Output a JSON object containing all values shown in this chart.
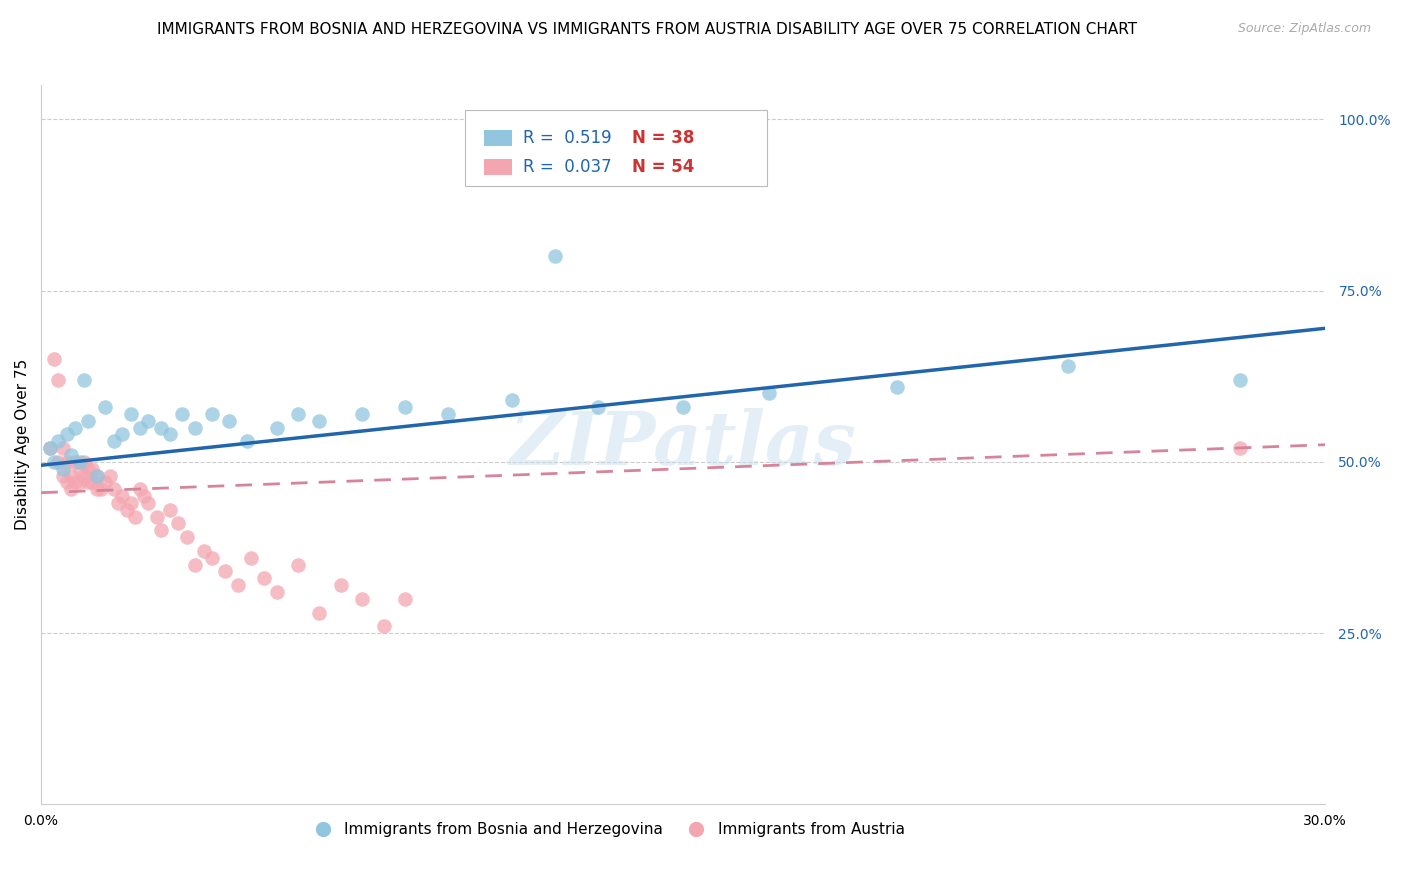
{
  "title": "IMMIGRANTS FROM BOSNIA AND HERZEGOVINA VS IMMIGRANTS FROM AUSTRIA DISABILITY AGE OVER 75 CORRELATION CHART",
  "source": "Source: ZipAtlas.com",
  "ylabel": "Disability Age Over 75",
  "xlim": [
    0.0,
    0.3
  ],
  "ylim": [
    0.0,
    1.05
  ],
  "xtick_labels": [
    "0.0%",
    "",
    "",
    "",
    "",
    "",
    "30.0%"
  ],
  "xtick_vals": [
    0.0,
    0.05,
    0.1,
    0.15,
    0.2,
    0.25,
    0.3
  ],
  "ytick_labels_right": [
    "100.0%",
    "75.0%",
    "50.0%",
    "25.0%"
  ],
  "ytick_vals_right": [
    1.0,
    0.75,
    0.5,
    0.25
  ],
  "R_bosnia": 0.519,
  "N_bosnia": 38,
  "R_austria": 0.037,
  "N_austria": 54,
  "color_bosnia": "#92c5de",
  "color_austria": "#f4a6b0",
  "color_line_bosnia": "#2166ac",
  "color_line_austria": "#d6849a",
  "watermark": "ZIPatlas",
  "bosnia_x": [
    0.002,
    0.003,
    0.004,
    0.005,
    0.006,
    0.007,
    0.008,
    0.009,
    0.01,
    0.011,
    0.013,
    0.015,
    0.017,
    0.019,
    0.021,
    0.023,
    0.025,
    0.028,
    0.03,
    0.033,
    0.036,
    0.04,
    0.044,
    0.048,
    0.055,
    0.06,
    0.065,
    0.075,
    0.085,
    0.095,
    0.11,
    0.12,
    0.13,
    0.15,
    0.17,
    0.2,
    0.24,
    0.28
  ],
  "bosnia_y": [
    0.52,
    0.5,
    0.53,
    0.49,
    0.54,
    0.51,
    0.55,
    0.5,
    0.62,
    0.56,
    0.48,
    0.58,
    0.53,
    0.54,
    0.57,
    0.55,
    0.56,
    0.55,
    0.54,
    0.57,
    0.55,
    0.57,
    0.56,
    0.53,
    0.55,
    0.57,
    0.56,
    0.57,
    0.58,
    0.57,
    0.59,
    0.8,
    0.58,
    0.58,
    0.6,
    0.61,
    0.64,
    0.62
  ],
  "austria_x": [
    0.002,
    0.003,
    0.004,
    0.004,
    0.005,
    0.005,
    0.006,
    0.006,
    0.007,
    0.007,
    0.008,
    0.008,
    0.009,
    0.009,
    0.01,
    0.01,
    0.011,
    0.011,
    0.012,
    0.012,
    0.013,
    0.013,
    0.014,
    0.015,
    0.016,
    0.017,
    0.018,
    0.019,
    0.02,
    0.021,
    0.022,
    0.023,
    0.024,
    0.025,
    0.027,
    0.028,
    0.03,
    0.032,
    0.034,
    0.036,
    0.038,
    0.04,
    0.043,
    0.046,
    0.049,
    0.052,
    0.055,
    0.06,
    0.065,
    0.07,
    0.075,
    0.08,
    0.085,
    0.28
  ],
  "austria_y": [
    0.52,
    0.65,
    0.5,
    0.62,
    0.48,
    0.52,
    0.47,
    0.5,
    0.48,
    0.46,
    0.5,
    0.47,
    0.49,
    0.47,
    0.5,
    0.48,
    0.49,
    0.47,
    0.49,
    0.47,
    0.46,
    0.48,
    0.46,
    0.47,
    0.48,
    0.46,
    0.44,
    0.45,
    0.43,
    0.44,
    0.42,
    0.46,
    0.45,
    0.44,
    0.42,
    0.4,
    0.43,
    0.41,
    0.39,
    0.35,
    0.37,
    0.36,
    0.34,
    0.32,
    0.36,
    0.33,
    0.31,
    0.35,
    0.28,
    0.32,
    0.3,
    0.26,
    0.3,
    0.52
  ],
  "bos_line_x": [
    0.0,
    0.3
  ],
  "bos_line_y": [
    0.495,
    0.695
  ],
  "aut_line_x": [
    0.0,
    0.3
  ],
  "aut_line_y": [
    0.455,
    0.525
  ],
  "title_fontsize": 11,
  "axis_label_fontsize": 11,
  "tick_fontsize": 10,
  "legend_fontsize": 12
}
